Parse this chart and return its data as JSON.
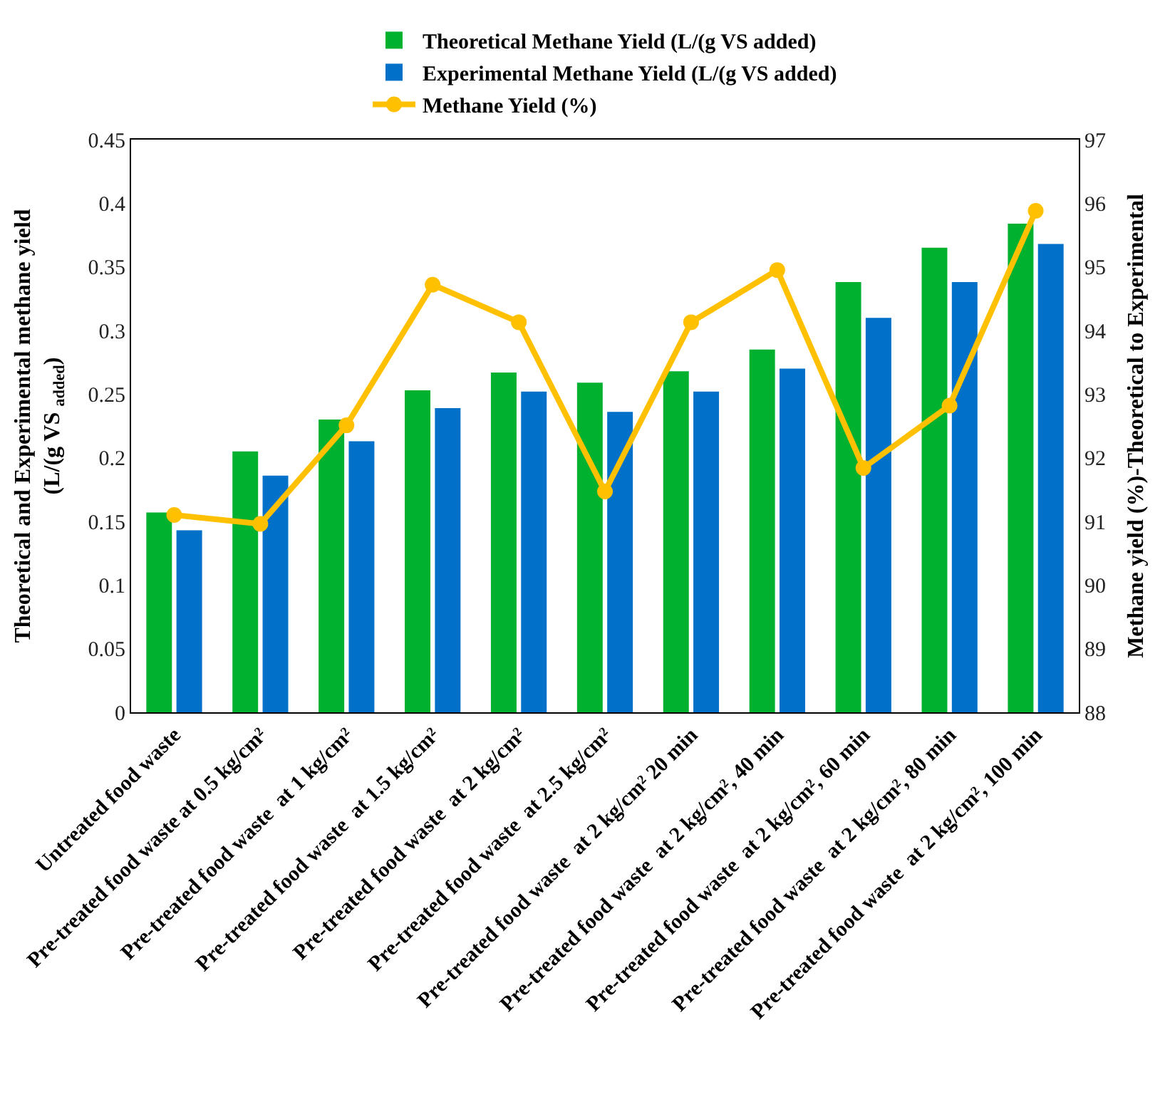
{
  "chart_data": {
    "type": "bar",
    "ylabel": "Theoretical and Experimental methane yield\n(L/(g VS $_{added}$)",
    "y2label": "Methane yield (%)-Theoretical to Experimental",
    "categories": [
      "Untreated food waste",
      "Pre-treated food waste at 0.5 kg/cm²",
      "Pre-treated food waste  at 1 kg/cm²",
      "Pre-treated food waste  at 1.5 kg/cm²",
      "Pre-treated food waste  at 2 kg/cm²",
      "Pre-treated food waste  at 2.5 kg/cm²",
      "Pre-treated food waste  at 2 kg/cm² 20 min",
      "Pre-treated food waste  at 2 kg/cm², 40 min",
      "Pre-treated food waste  at 2 kg/cm², 60 min",
      "Pre-treated food waste  at 2 kg/cm², 80 min",
      "Pre-treated food waste  at 2 kg/cm², 100 min"
    ],
    "series": [
      {
        "name": "Theoretical Methane Yield (L/(g VS added)",
        "color": "#00b02f",
        "values": [
          0.157,
          0.205,
          0.23,
          0.253,
          0.267,
          0.259,
          0.268,
          0.285,
          0.338,
          0.365,
          0.384
        ]
      },
      {
        "name": "Experimental Methane Yield (L/(g VS added)",
        "color": "#0070c8",
        "values": [
          0.143,
          0.186,
          0.213,
          0.239,
          0.252,
          0.236,
          0.252,
          0.27,
          0.31,
          0.338,
          0.368
        ]
      },
      {
        "name": "Methane Yield (%)",
        "type": "line",
        "axis": "y2",
        "color": "#ffc000",
        "marker": "circle",
        "values": [
          91.1,
          90.96,
          92.51,
          94.72,
          94.13,
          91.47,
          94.13,
          94.95,
          91.84,
          92.82,
          95.88
        ]
      }
    ],
    "ylim": [
      0,
      0.45
    ],
    "yticks": [
      0,
      0.05,
      0.1,
      0.15,
      0.2,
      0.25,
      0.3,
      0.35,
      0.4,
      0.45
    ],
    "y2lim": [
      88,
      97
    ],
    "y2ticks": [
      88,
      89,
      90,
      91,
      92,
      93,
      94,
      95,
      96,
      97
    ],
    "legend": "top"
  }
}
